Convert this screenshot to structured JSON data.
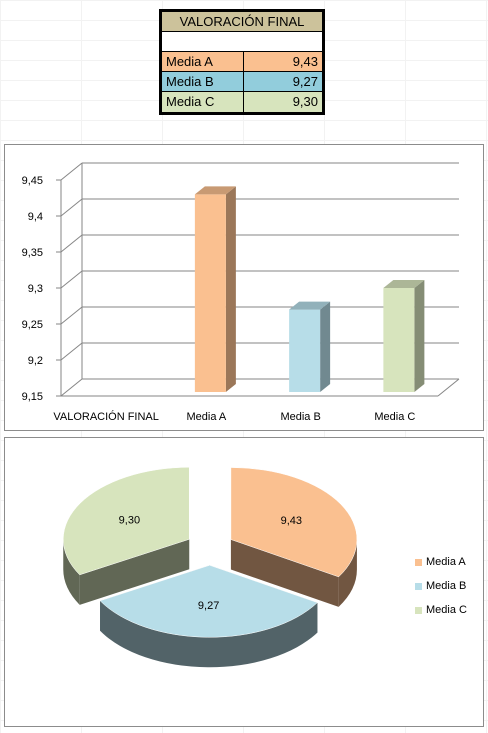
{
  "table": {
    "title": "VALORACIÓN FINAL",
    "rows": [
      {
        "label": "Media A",
        "value": "9,43",
        "color": "#fac090"
      },
      {
        "label": "Media B",
        "value": "9,27",
        "color": "#92cddc"
      },
      {
        "label": "Media C",
        "value": "9,30",
        "color": "#d7e4bd"
      }
    ]
  },
  "chart_data": [
    {
      "type": "bar",
      "style": "3d-clustered-column",
      "categories": [
        "VALORACIÓN FINAL",
        "Media A",
        "Media B",
        "Media C"
      ],
      "values": [
        null,
        9.43,
        9.27,
        9.3
      ],
      "colors": [
        "",
        "#fac090",
        "#b7dde8",
        "#d7e4bd"
      ],
      "ylim": [
        9.15,
        9.45
      ],
      "yticks": [
        "9,15",
        "9,2",
        "9,25",
        "9,3",
        "9,35",
        "9,4",
        "9,45"
      ],
      "ytick_values": [
        9.15,
        9.2,
        9.25,
        9.3,
        9.35,
        9.4,
        9.45
      ],
      "grid": true
    },
    {
      "type": "pie",
      "style": "3d-exploded",
      "labels": [
        "Media A",
        "Media B",
        "Media C"
      ],
      "values": [
        9.43,
        9.27,
        9.3
      ],
      "data_labels": [
        "9,43",
        "9,27",
        "9,30"
      ],
      "colors": [
        "#fac090",
        "#b7dde8",
        "#d7e4bd"
      ],
      "legend_position": "right"
    }
  ]
}
